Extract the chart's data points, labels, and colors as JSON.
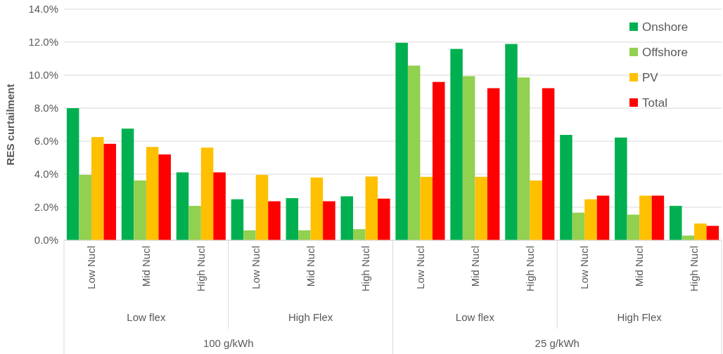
{
  "chart_data": {
    "type": "bar",
    "ylabel": "RES curtailment",
    "categories": [
      "Low Nucl",
      "Mid Nucl",
      "High Nucl",
      "Low Nucl",
      "Mid Nucl",
      "High Nucl",
      "Low Nucl",
      "Mid Nucl",
      "High Nucl",
      "Low Nucl",
      "Mid Nucl",
      "High Nucl"
    ],
    "series": [
      {
        "name": "Onshore",
        "color": "#00b050",
        "values": [
          8.0,
          6.76,
          4.11,
          2.48,
          2.55,
          2.66,
          11.96,
          11.59,
          11.89,
          6.38,
          6.22,
          2.08
        ]
      },
      {
        "name": "Offshore",
        "color": "#92d050",
        "values": [
          3.96,
          3.62,
          2.08,
          0.6,
          0.6,
          0.67,
          10.58,
          9.94,
          9.86,
          1.67,
          1.55,
          0.28
        ]
      },
      {
        "name": "PV",
        "color": "#ffc000",
        "values": [
          6.25,
          5.65,
          5.61,
          3.96,
          3.8,
          3.86,
          3.84,
          3.84,
          3.62,
          2.48,
          2.7,
          1.01
        ]
      },
      {
        "name": "Total",
        "color": "#ff0000",
        "values": [
          5.84,
          5.2,
          4.11,
          2.36,
          2.36,
          2.52,
          9.59,
          9.21,
          9.21,
          2.7,
          2.7,
          0.87
        ]
      }
    ],
    "annotations": [
      "Low flex",
      "High Flex",
      "Low flex",
      "High Flex",
      "100 g/kWh",
      "25 g/kWh"
    ],
    "ylim": [
      0,
      14
    ],
    "yticks": [
      {
        "value": 0,
        "label": "0.0%"
      },
      {
        "value": 2,
        "label": "2.0%"
      },
      {
        "value": 4,
        "label": "4.0%"
      },
      {
        "value": 6,
        "label": "6.0%"
      },
      {
        "value": 8,
        "label": "8.0%"
      },
      {
        "value": 10,
        "label": "10.0%"
      },
      {
        "value": 12,
        "label": "12.0%"
      },
      {
        "value": 14,
        "label": "14.0%"
      }
    ],
    "grid": "y",
    "legend": "top right"
  }
}
